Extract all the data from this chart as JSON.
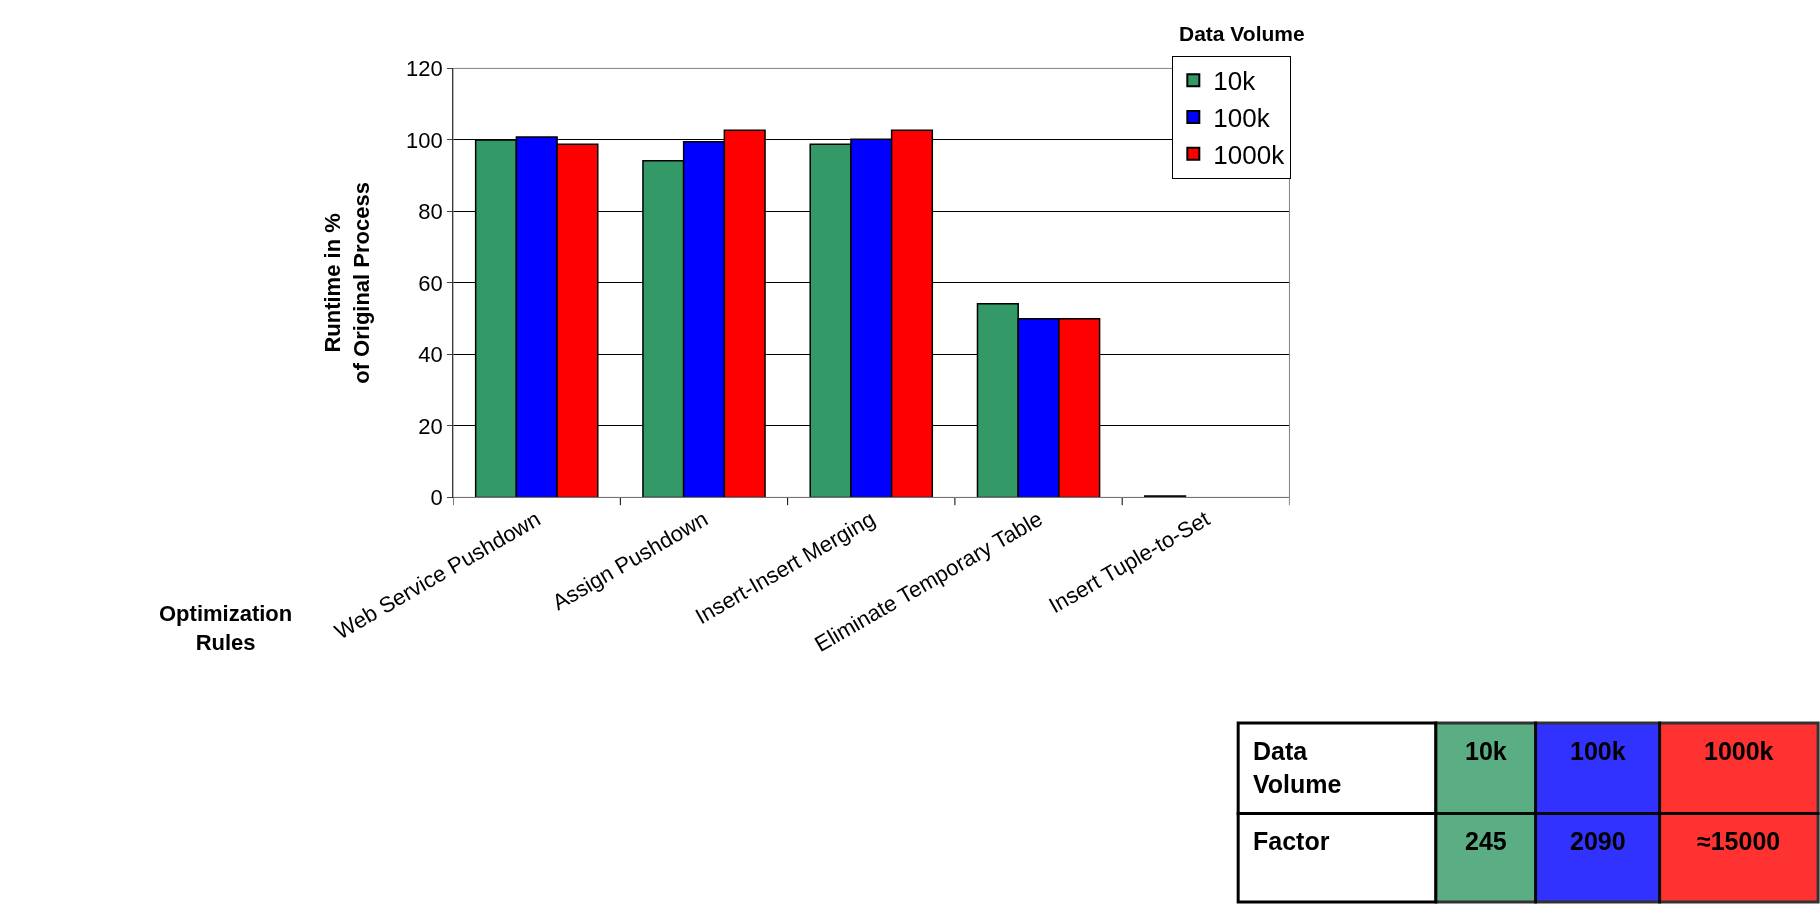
{
  "chart_data": {
    "type": "bar",
    "categories": [
      "Web Service Pushdown",
      "Assign Pushdown",
      "Insert-Insert Merging",
      "Eliminate Temporary Table",
      "Insert Tuple-to-Set"
    ],
    "series": [
      {
        "name": "10k",
        "color": "#339966",
        "values": [
          100,
          94.2,
          98.8,
          54.2,
          0.4
        ]
      },
      {
        "name": "100k",
        "color": "#0000ff",
        "values": [
          100.8,
          99.5,
          100.2,
          50,
          null
        ]
      },
      {
        "name": "1000k",
        "color": "#ff0000",
        "values": [
          98.8,
          102.7,
          102.7,
          50,
          null
        ]
      }
    ],
    "ylabel": "Runtime in % of Original Process",
    "xlabel": "Optimization Rules",
    "legend_title": "Data Volume",
    "legend": "top right",
    "ylim": [
      0,
      120
    ],
    "yticks": [
      0,
      20,
      40,
      60,
      80,
      100,
      120
    ],
    "grid": "y",
    "annotations": [
      "Data Volume",
      "10k",
      "100k",
      "1000k",
      "Factor",
      "245",
      "2090",
      "≈15000"
    ]
  }
}
